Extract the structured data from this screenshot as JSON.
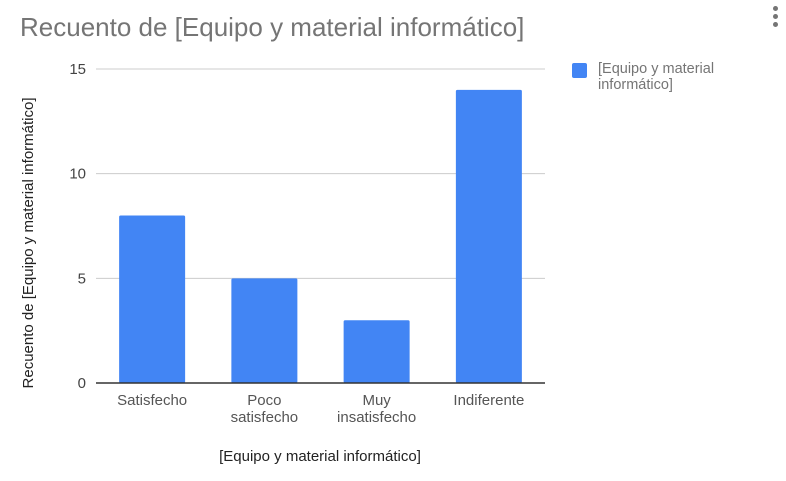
{
  "chart_data": {
    "type": "bar",
    "title": "Recuento de [Equipo y material informático]",
    "xlabel": "[Equipo y material informático]",
    "ylabel": "Recuento de [Equipo y material informático]",
    "categories": [
      "Satisfecho",
      "Poco satisfecho",
      "Muy insatisfecho",
      "Indiferente"
    ],
    "series": [
      {
        "name": "[Equipo y material informático]",
        "values": [
          8,
          5,
          3,
          14
        ],
        "color": "#4285f4"
      }
    ],
    "ylim": [
      0,
      15
    ],
    "yticks": [
      0,
      5,
      10,
      15
    ],
    "grid": true,
    "legend": "right"
  },
  "menu": {
    "icon": "more-vert-icon"
  }
}
